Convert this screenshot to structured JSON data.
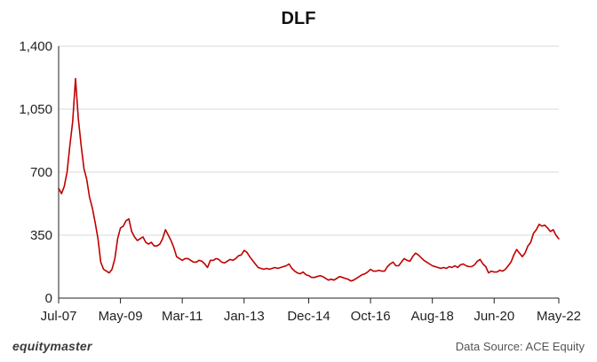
{
  "brand": "equitymaster",
  "source": "Data Source: ACE Equity",
  "colors": {
    "line": "#c00000",
    "grid": "#d9d9d9",
    "axis": "#222222"
  },
  "chart_data": {
    "type": "line",
    "title": "DLF",
    "xlabel": "",
    "ylabel": "",
    "ylim": [
      0,
      1400
    ],
    "yticks": [
      0,
      350,
      700,
      1050,
      1400
    ],
    "ytick_labels": [
      "0",
      "350",
      "700",
      "1,050",
      "1,400"
    ],
    "xlim": [
      "2007-07",
      "2022-05"
    ],
    "xticks": [
      "2007-07",
      "2009-05",
      "2011-03",
      "2013-01",
      "2014-12",
      "2016-10",
      "2018-08",
      "2020-06",
      "2022-05"
    ],
    "xtick_labels": [
      "Jul-07",
      "May-09",
      "Mar-11",
      "Jan-13",
      "Dec-14",
      "Oct-16",
      "Aug-18",
      "Jun-20",
      "May-22"
    ],
    "grid": {
      "horizontal": true,
      "vertical": false
    },
    "series": [
      {
        "x": [
          "2007-07",
          "2007-08",
          "2007-09",
          "2007-10",
          "2007-11",
          "2007-12",
          "2008-01",
          "2008-02",
          "2008-03",
          "2008-04",
          "2008-05",
          "2008-06",
          "2008-07",
          "2008-08",
          "2008-09",
          "2008-10",
          "2008-11",
          "2008-12",
          "2009-01",
          "2009-02",
          "2009-03",
          "2009-04",
          "2009-05",
          "2009-06",
          "2009-07",
          "2009-08",
          "2009-09",
          "2009-10",
          "2009-11",
          "2009-12",
          "2010-01",
          "2010-02",
          "2010-03",
          "2010-04",
          "2010-05",
          "2010-06",
          "2010-07",
          "2010-08",
          "2010-09",
          "2010-10",
          "2010-11",
          "2010-12",
          "2011-01",
          "2011-02",
          "2011-03",
          "2011-04",
          "2011-05",
          "2011-06",
          "2011-07",
          "2011-08",
          "2011-09",
          "2011-10",
          "2011-11",
          "2011-12",
          "2012-01",
          "2012-02",
          "2012-03",
          "2012-04",
          "2012-05",
          "2012-06",
          "2012-07",
          "2012-08",
          "2012-09",
          "2012-10",
          "2012-11",
          "2012-12",
          "2013-01",
          "2013-02",
          "2013-03",
          "2013-04",
          "2013-05",
          "2013-06",
          "2013-07",
          "2013-08",
          "2013-09",
          "2013-10",
          "2013-11",
          "2013-12",
          "2014-01",
          "2014-02",
          "2014-03",
          "2014-04",
          "2014-05",
          "2014-06",
          "2014-07",
          "2014-08",
          "2014-09",
          "2014-10",
          "2014-11",
          "2014-12",
          "2015-01",
          "2015-02",
          "2015-03",
          "2015-04",
          "2015-05",
          "2015-06",
          "2015-07",
          "2015-08",
          "2015-09",
          "2015-10",
          "2015-11",
          "2015-12",
          "2016-01",
          "2016-02",
          "2016-03",
          "2016-04",
          "2016-05",
          "2016-06",
          "2016-07",
          "2016-08",
          "2016-09",
          "2016-10",
          "2016-11",
          "2016-12",
          "2017-01",
          "2017-02",
          "2017-03",
          "2017-04",
          "2017-05",
          "2017-06",
          "2017-07",
          "2017-08",
          "2017-09",
          "2017-10",
          "2017-11",
          "2017-12",
          "2018-01",
          "2018-02",
          "2018-03",
          "2018-04",
          "2018-05",
          "2018-06",
          "2018-07",
          "2018-08",
          "2018-09",
          "2018-10",
          "2018-11",
          "2018-12",
          "2019-01",
          "2019-02",
          "2019-03",
          "2019-04",
          "2019-05",
          "2019-06",
          "2019-07",
          "2019-08",
          "2019-09",
          "2019-10",
          "2019-11",
          "2019-12",
          "2020-01",
          "2020-02",
          "2020-03",
          "2020-04",
          "2020-05",
          "2020-06",
          "2020-07",
          "2020-08",
          "2020-09",
          "2020-10",
          "2020-11",
          "2020-12",
          "2021-01",
          "2021-02",
          "2021-03",
          "2021-04",
          "2021-05",
          "2021-06",
          "2021-07",
          "2021-08",
          "2021-09",
          "2021-10",
          "2021-11",
          "2021-12",
          "2022-01",
          "2022-02",
          "2022-03",
          "2022-04",
          "2022-05"
        ],
        "values": [
          610,
          580,
          620,
          700,
          850,
          980,
          1220,
          1000,
          850,
          720,
          660,
          560,
          500,
          420,
          330,
          200,
          160,
          150,
          140,
          160,
          220,
          330,
          390,
          400,
          430,
          440,
          370,
          340,
          320,
          330,
          340,
          310,
          300,
          310,
          290,
          290,
          300,
          330,
          380,
          350,
          320,
          280,
          230,
          220,
          210,
          220,
          220,
          210,
          200,
          200,
          210,
          205,
          190,
          170,
          210,
          210,
          220,
          215,
          200,
          195,
          205,
          215,
          210,
          220,
          235,
          240,
          265,
          255,
          230,
          210,
          190,
          170,
          165,
          160,
          165,
          160,
          165,
          170,
          165,
          170,
          175,
          180,
          190,
          165,
          150,
          140,
          135,
          145,
          130,
          125,
          115,
          115,
          120,
          125,
          120,
          110,
          100,
          105,
          100,
          110,
          120,
          115,
          110,
          105,
          95,
          100,
          110,
          120,
          130,
          135,
          145,
          160,
          150,
          150,
          155,
          150,
          150,
          175,
          190,
          200,
          180,
          180,
          200,
          220,
          210,
          205,
          230,
          250,
          240,
          225,
          210,
          200,
          190,
          180,
          175,
          170,
          165,
          170,
          165,
          175,
          170,
          180,
          170,
          185,
          190,
          180,
          175,
          175,
          185,
          205,
          215,
          190,
          175,
          140,
          150,
          145,
          145,
          155,
          150,
          160,
          180,
          200,
          240,
          270,
          250,
          230,
          250,
          290,
          310,
          360,
          380,
          410,
          400,
          405,
          390,
          370,
          380,
          350,
          330
        ]
      }
    ]
  }
}
